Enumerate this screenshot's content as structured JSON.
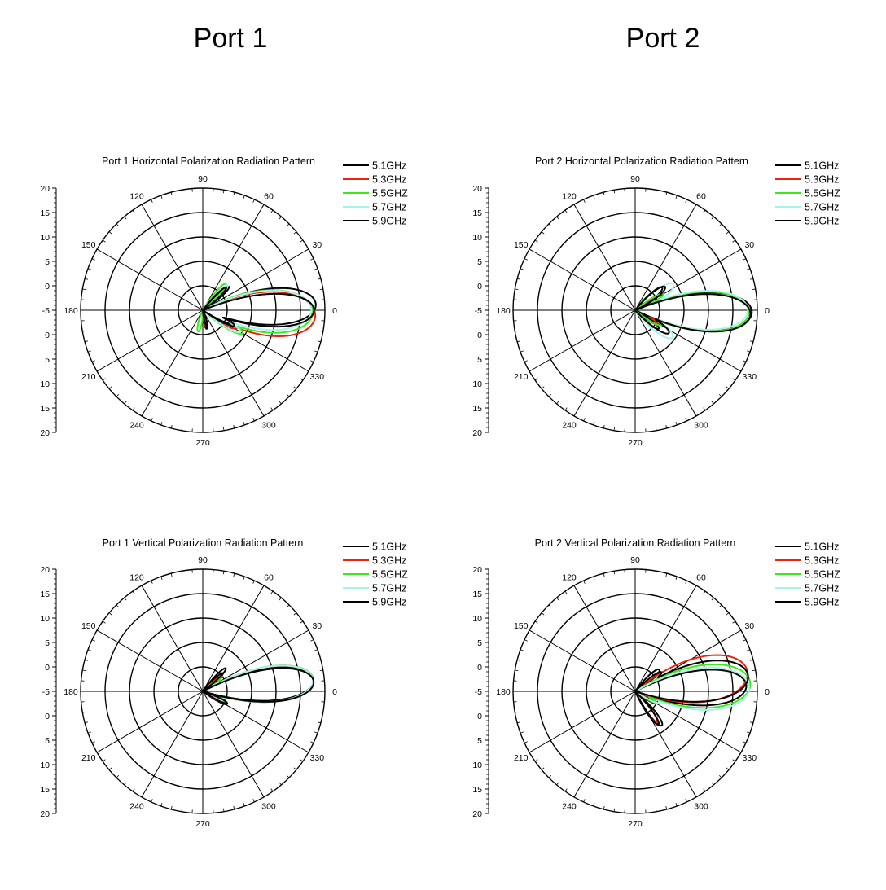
{
  "headings": [
    "Port 1",
    "Port 2"
  ],
  "colors": {
    "5.1GHz": "#000000",
    "5.3GHz": "#e8230f",
    "5.5GHZ": "#3de81a",
    "5.7GHz": "#a8f2e8",
    "5.9GHz": "#000000"
  },
  "chart_data": [
    {
      "type": "polar",
      "title": "Port 1 Horizontal Polarization Radiation Pattern",
      "angle_ticks": [
        "0",
        "30",
        "60",
        "90",
        "120",
        "150",
        "180",
        "210",
        "240",
        "270",
        "300",
        "330"
      ],
      "radial_ticks": [
        "20",
        "15",
        "10",
        "5",
        "0",
        "-5",
        "0",
        "5",
        "10",
        "15",
        "20"
      ],
      "rlim": [
        -25,
        20
      ],
      "legend": [
        "5.1GHz",
        "5.3GHz",
        "5.5GHZ",
        "5.7GHz",
        "5.9GHz"
      ],
      "series": [
        {
          "name": "5.1GHz",
          "lobes": [
            {
              "center": 3,
              "width": 13,
              "peak": 16.7
            },
            {
              "center": 42,
              "width": 9,
              "peak": -12
            },
            {
              "center": -24,
              "width": 9,
              "peak": -13
            },
            {
              "center": -78,
              "width": 14,
              "peak": -18
            }
          ]
        },
        {
          "name": "5.3GHz",
          "lobes": [
            {
              "center": -3,
              "width": 16,
              "peak": 16.5
            },
            {
              "center": 46,
              "width": 8,
              "peak": -13
            },
            {
              "center": -28,
              "width": 11,
              "peak": -11
            },
            {
              "center": -78,
              "width": 12,
              "peak": -19
            }
          ]
        },
        {
          "name": "5.5GHZ",
          "lobes": [
            {
              "center": -1,
              "width": 16,
              "peak": 15.5
            },
            {
              "center": 49,
              "width": 9,
              "peak": -12
            },
            {
              "center": -30,
              "width": 10,
              "peak": -8
            },
            {
              "center": -102,
              "width": 15,
              "peak": -17
            }
          ]
        },
        {
          "name": "5.7GHz",
          "lobes": [
            {
              "center": 0,
              "width": 15,
              "peak": 15
            },
            {
              "center": 45,
              "width": 9,
              "peak": -12
            },
            {
              "center": -30,
              "width": 9,
              "peak": -9
            }
          ]
        },
        {
          "name": "5.9GHz",
          "lobes": [
            {
              "center": 0,
              "width": 12,
              "peak": 16
            },
            {
              "center": 44,
              "width": 9,
              "peak": -13
            },
            {
              "center": -26,
              "width": 9,
              "peak": -12
            },
            {
              "center": -75,
              "width": 14,
              "peak": -19
            }
          ]
        }
      ]
    },
    {
      "type": "polar",
      "title": "Port 2 Horizontal Polarization Radiation Pattern",
      "angle_ticks": [
        "0",
        "30",
        "60",
        "90",
        "120",
        "150",
        "180",
        "210",
        "240",
        "270",
        "300",
        "330"
      ],
      "radial_ticks": [
        "20",
        "15",
        "10",
        "5",
        "0",
        "-5",
        "0",
        "5",
        "10",
        "15",
        "20"
      ],
      "rlim": [
        -25,
        20
      ],
      "legend": [
        "5.1GHz",
        "5.3GHz",
        "5.5GHZ",
        "5.7GHz",
        "5.9GHz"
      ],
      "series": [
        {
          "name": "5.1GHz",
          "lobes": [
            {
              "center": -1,
              "width": 13,
              "peak": 18
            },
            {
              "center": 40,
              "width": 12,
              "peak": -12
            },
            {
              "center": -38,
              "width": 11,
              "peak": -14
            }
          ]
        },
        {
          "name": "5.3GHz",
          "lobes": [
            {
              "center": -1,
              "width": 14,
              "peak": 17
            },
            {
              "center": 28,
              "width": 10,
              "peak": -14
            },
            {
              "center": -32,
              "width": 10,
              "peak": -15
            }
          ]
        },
        {
          "name": "5.5GHZ",
          "lobes": [
            {
              "center": -1,
              "width": 14,
              "peak": 17
            },
            {
              "center": 30,
              "width": 10,
              "peak": -13
            },
            {
              "center": -30,
              "width": 10,
              "peak": -14
            }
          ]
        },
        {
          "name": "5.7GHz",
          "lobes": [
            {
              "center": 0,
              "width": 14,
              "peak": 16.5
            },
            {
              "center": 34,
              "width": 14,
              "peak": -8
            },
            {
              "center": -36,
              "width": 14,
              "peak": -8
            }
          ]
        },
        {
          "name": "5.9GHz",
          "lobes": [
            {
              "center": -2,
              "width": 13,
              "peak": 17.5
            },
            {
              "center": 38,
              "width": 12,
              "peak": -11
            },
            {
              "center": -34,
              "width": 12,
              "peak": -10
            }
          ]
        }
      ]
    },
    {
      "type": "polar",
      "title": "Port 1 Vertical Polarization Radiation Pattern",
      "angle_ticks": [
        "0",
        "30",
        "60",
        "90",
        "120",
        "150",
        "180",
        "210",
        "240",
        "270",
        "300",
        "330"
      ],
      "radial_ticks": [
        "20",
        "15",
        "10",
        "5",
        "0",
        "-5",
        "0",
        "5",
        "10",
        "15",
        "20"
      ],
      "rlim": [
        -25,
        20
      ],
      "legend": [
        "5.1GHz",
        "5.3GHz",
        "5.5GHZ",
        "5.7GHz",
        "5.9GHz"
      ],
      "series": [
        {
          "name": "5.1GHz",
          "lobes": [
            {
              "center": 6,
              "width": 12,
              "peak": 16
            },
            {
              "center": -28,
              "width": 10,
              "peak": -15
            },
            {
              "center": 42,
              "width": 9,
              "peak": -15
            }
          ]
        },
        {
          "name": "5.3GHz",
          "lobes": [
            {
              "center": 6,
              "width": 13,
              "peak": 16
            },
            {
              "center": -27,
              "width": 10,
              "peak": -16
            },
            {
              "center": 38,
              "width": 9,
              "peak": -16
            }
          ]
        },
        {
          "name": "5.5GHZ",
          "lobes": [
            {
              "center": 6,
              "width": 13,
              "peak": 16
            },
            {
              "center": -24,
              "width": 10,
              "peak": -16
            },
            {
              "center": 35,
              "width": 9,
              "peak": -17
            }
          ]
        },
        {
          "name": "5.7GHz",
          "lobes": [
            {
              "center": 6,
              "width": 13,
              "peak": 15.8
            },
            {
              "center": -25,
              "width": 10,
              "peak": -17
            }
          ]
        },
        {
          "name": "5.9GHz",
          "lobes": [
            {
              "center": 5,
              "width": 12,
              "peak": 16
            },
            {
              "center": -26,
              "width": 9,
              "peak": -15
            },
            {
              "center": 45,
              "width": 9,
              "peak": -13
            }
          ]
        }
      ]
    },
    {
      "type": "polar",
      "title": "Port 2 Vertical Polarization Radiation Pattern",
      "angle_ticks": [
        "0",
        "30",
        "60",
        "90",
        "120",
        "150",
        "180",
        "210",
        "240",
        "270",
        "300",
        "330"
      ],
      "radial_ticks": [
        "20",
        "15",
        "10",
        "5",
        "0",
        "-5",
        "0",
        "5",
        "10",
        "15",
        "20"
      ],
      "rlim": [
        -25,
        20
      ],
      "legend": [
        "5.1GHz",
        "5.3GHz",
        "5.5GHZ",
        "5.7GHz",
        "5.9GHz"
      ],
      "series": [
        {
          "name": "5.1GHz",
          "lobes": [
            {
              "center": 3,
              "width": 13,
              "peak": 16
            },
            {
              "center": -30,
              "width": 9,
              "peak": -16
            },
            {
              "center": -52,
              "width": 10,
              "peak": -9
            },
            {
              "center": 42,
              "width": 12,
              "peak": -13
            }
          ]
        },
        {
          "name": "5.3GHz",
          "lobes": [
            {
              "center": 10,
              "width": 16,
              "peak": 17
            },
            {
              "center": -55,
              "width": 10,
              "peak": -11
            },
            {
              "center": -28,
              "width": 9,
              "peak": -16
            }
          ]
        },
        {
          "name": "5.5GHZ",
          "lobes": [
            {
              "center": 4,
              "width": 15,
              "peak": 17.5
            },
            {
              "center": -28,
              "width": 9,
              "peak": -16
            }
          ]
        },
        {
          "name": "5.7GHz",
          "lobes": [
            {
              "center": 2,
              "width": 15,
              "peak": 17
            },
            {
              "center": -25,
              "width": 10,
              "peak": -15
            }
          ]
        },
        {
          "name": "5.9GHz",
          "lobes": [
            {
              "center": 8,
              "width": 14,
              "peak": 17
            },
            {
              "center": -55,
              "width": 9,
              "peak": -10
            },
            {
              "center": 36,
              "width": 10,
              "peak": -13
            }
          ]
        }
      ]
    }
  ]
}
